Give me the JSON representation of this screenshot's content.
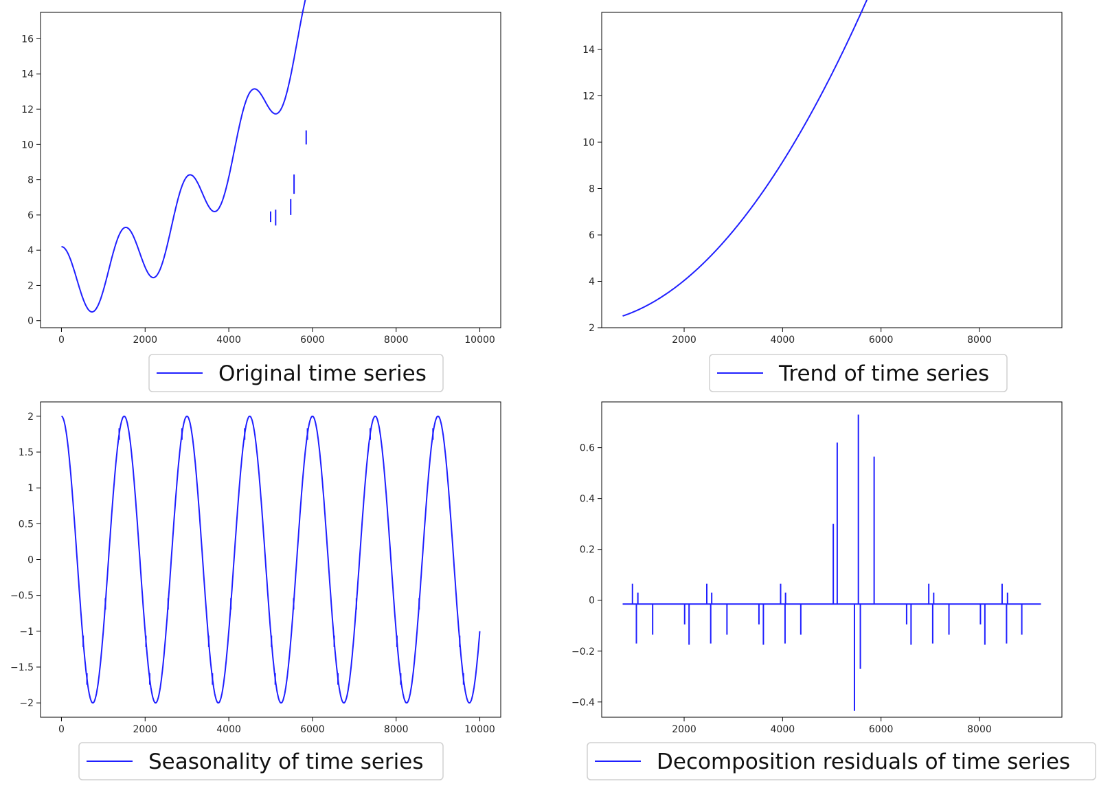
{
  "line_color": "#1f1fff",
  "axes_color": "#000000",
  "chart_data": [
    {
      "type": "line",
      "name": "original",
      "legend": "Original time series",
      "x_range": [
        0,
        10000
      ],
      "xlim": [
        -500,
        10500
      ],
      "ylim": [
        -0.4,
        17.5
      ],
      "xticks": [
        0,
        2000,
        4000,
        6000,
        8000,
        10000
      ],
      "yticks": [
        0,
        2,
        4,
        6,
        8,
        10,
        12,
        14,
        16
      ],
      "curve": {
        "trend_a": 2.2,
        "trend_b": 9.8e-05,
        "trend_c": 4.1e-07,
        "season_amp": 2.0,
        "season_period": 1500
      },
      "spikes": [
        {
          "x": 5000,
          "y0": 5.6,
          "y1": 6.2
        },
        {
          "x": 5120,
          "y0": 5.4,
          "y1": 6.3
        },
        {
          "x": 5480,
          "y0": 6.0,
          "y1": 6.9
        },
        {
          "x": 5560,
          "y0": 7.2,
          "y1": 8.3
        },
        {
          "x": 5850,
          "y0": 10.0,
          "y1": 10.8
        }
      ]
    },
    {
      "type": "line",
      "name": "trend",
      "legend": "Trend of time series",
      "x_range": [
        750,
        9250
      ],
      "xlim": [
        325,
        9675
      ],
      "ylim": [
        2.0,
        15.6
      ],
      "xticks": [
        2000,
        4000,
        6000,
        8000
      ],
      "yticks": [
        2,
        4,
        6,
        8,
        10,
        12,
        14
      ],
      "curve": {
        "trend_a": 2.2,
        "trend_b": 9.8e-05,
        "trend_c": 4.1e-07
      }
    },
    {
      "type": "line",
      "name": "seasonality",
      "legend": "Seasonality of time series",
      "x_range": [
        0,
        10000
      ],
      "xlim": [
        -500,
        10500
      ],
      "ylim": [
        -2.2,
        2.2
      ],
      "xticks": [
        0,
        2000,
        4000,
        6000,
        8000,
        10000
      ],
      "yticks": [
        2.0,
        1.5,
        1.0,
        0.5,
        0.0,
        -0.5,
        -1.0,
        -1.5,
        -2.0
      ],
      "curve": {
        "season_amp": 2.0,
        "season_period": 1500
      }
    },
    {
      "type": "line",
      "name": "residuals",
      "legend": "Decomposition residuals of time series",
      "x_range": [
        750,
        9250
      ],
      "xlim": [
        325,
        9675
      ],
      "ylim": [
        -0.46,
        0.78
      ],
      "xticks": [
        2000,
        4000,
        6000,
        8000
      ],
      "yticks": [
        0.6,
        0.4,
        0.2,
        0.0,
        -0.2,
        -0.4
      ],
      "baseline": -0.015,
      "spikes": [
        {
          "x": 950,
          "y": 0.065
        },
        {
          "x": 1030,
          "y": -0.17
        },
        {
          "x": 1060,
          "y": 0.03
        },
        {
          "x": 1360,
          "y": -0.135
        },
        {
          "x": 2010,
          "y": -0.095
        },
        {
          "x": 2100,
          "y": -0.175
        },
        {
          "x": 2460,
          "y": 0.065
        },
        {
          "x": 2540,
          "y": -0.17
        },
        {
          "x": 2560,
          "y": 0.03
        },
        {
          "x": 2870,
          "y": -0.135
        },
        {
          "x": 3520,
          "y": -0.095
        },
        {
          "x": 3610,
          "y": -0.175
        },
        {
          "x": 3960,
          "y": 0.065
        },
        {
          "x": 4050,
          "y": -0.17
        },
        {
          "x": 4060,
          "y": 0.03
        },
        {
          "x": 4370,
          "y": -0.135
        },
        {
          "x": 5030,
          "y": 0.3
        },
        {
          "x": 5110,
          "y": 0.62
        },
        {
          "x": 5460,
          "y": -0.435
        },
        {
          "x": 5540,
          "y": 0.73
        },
        {
          "x": 5580,
          "y": -0.27
        },
        {
          "x": 5860,
          "y": 0.565
        },
        {
          "x": 6520,
          "y": -0.095
        },
        {
          "x": 6610,
          "y": -0.175
        },
        {
          "x": 6970,
          "y": 0.065
        },
        {
          "x": 7050,
          "y": -0.17
        },
        {
          "x": 7070,
          "y": 0.03
        },
        {
          "x": 7380,
          "y": -0.135
        },
        {
          "x": 8020,
          "y": -0.095
        },
        {
          "x": 8110,
          "y": -0.175
        },
        {
          "x": 8460,
          "y": 0.065
        },
        {
          "x": 8550,
          "y": -0.17
        },
        {
          "x": 8570,
          "y": 0.03
        },
        {
          "x": 8860,
          "y": -0.135
        }
      ]
    }
  ]
}
